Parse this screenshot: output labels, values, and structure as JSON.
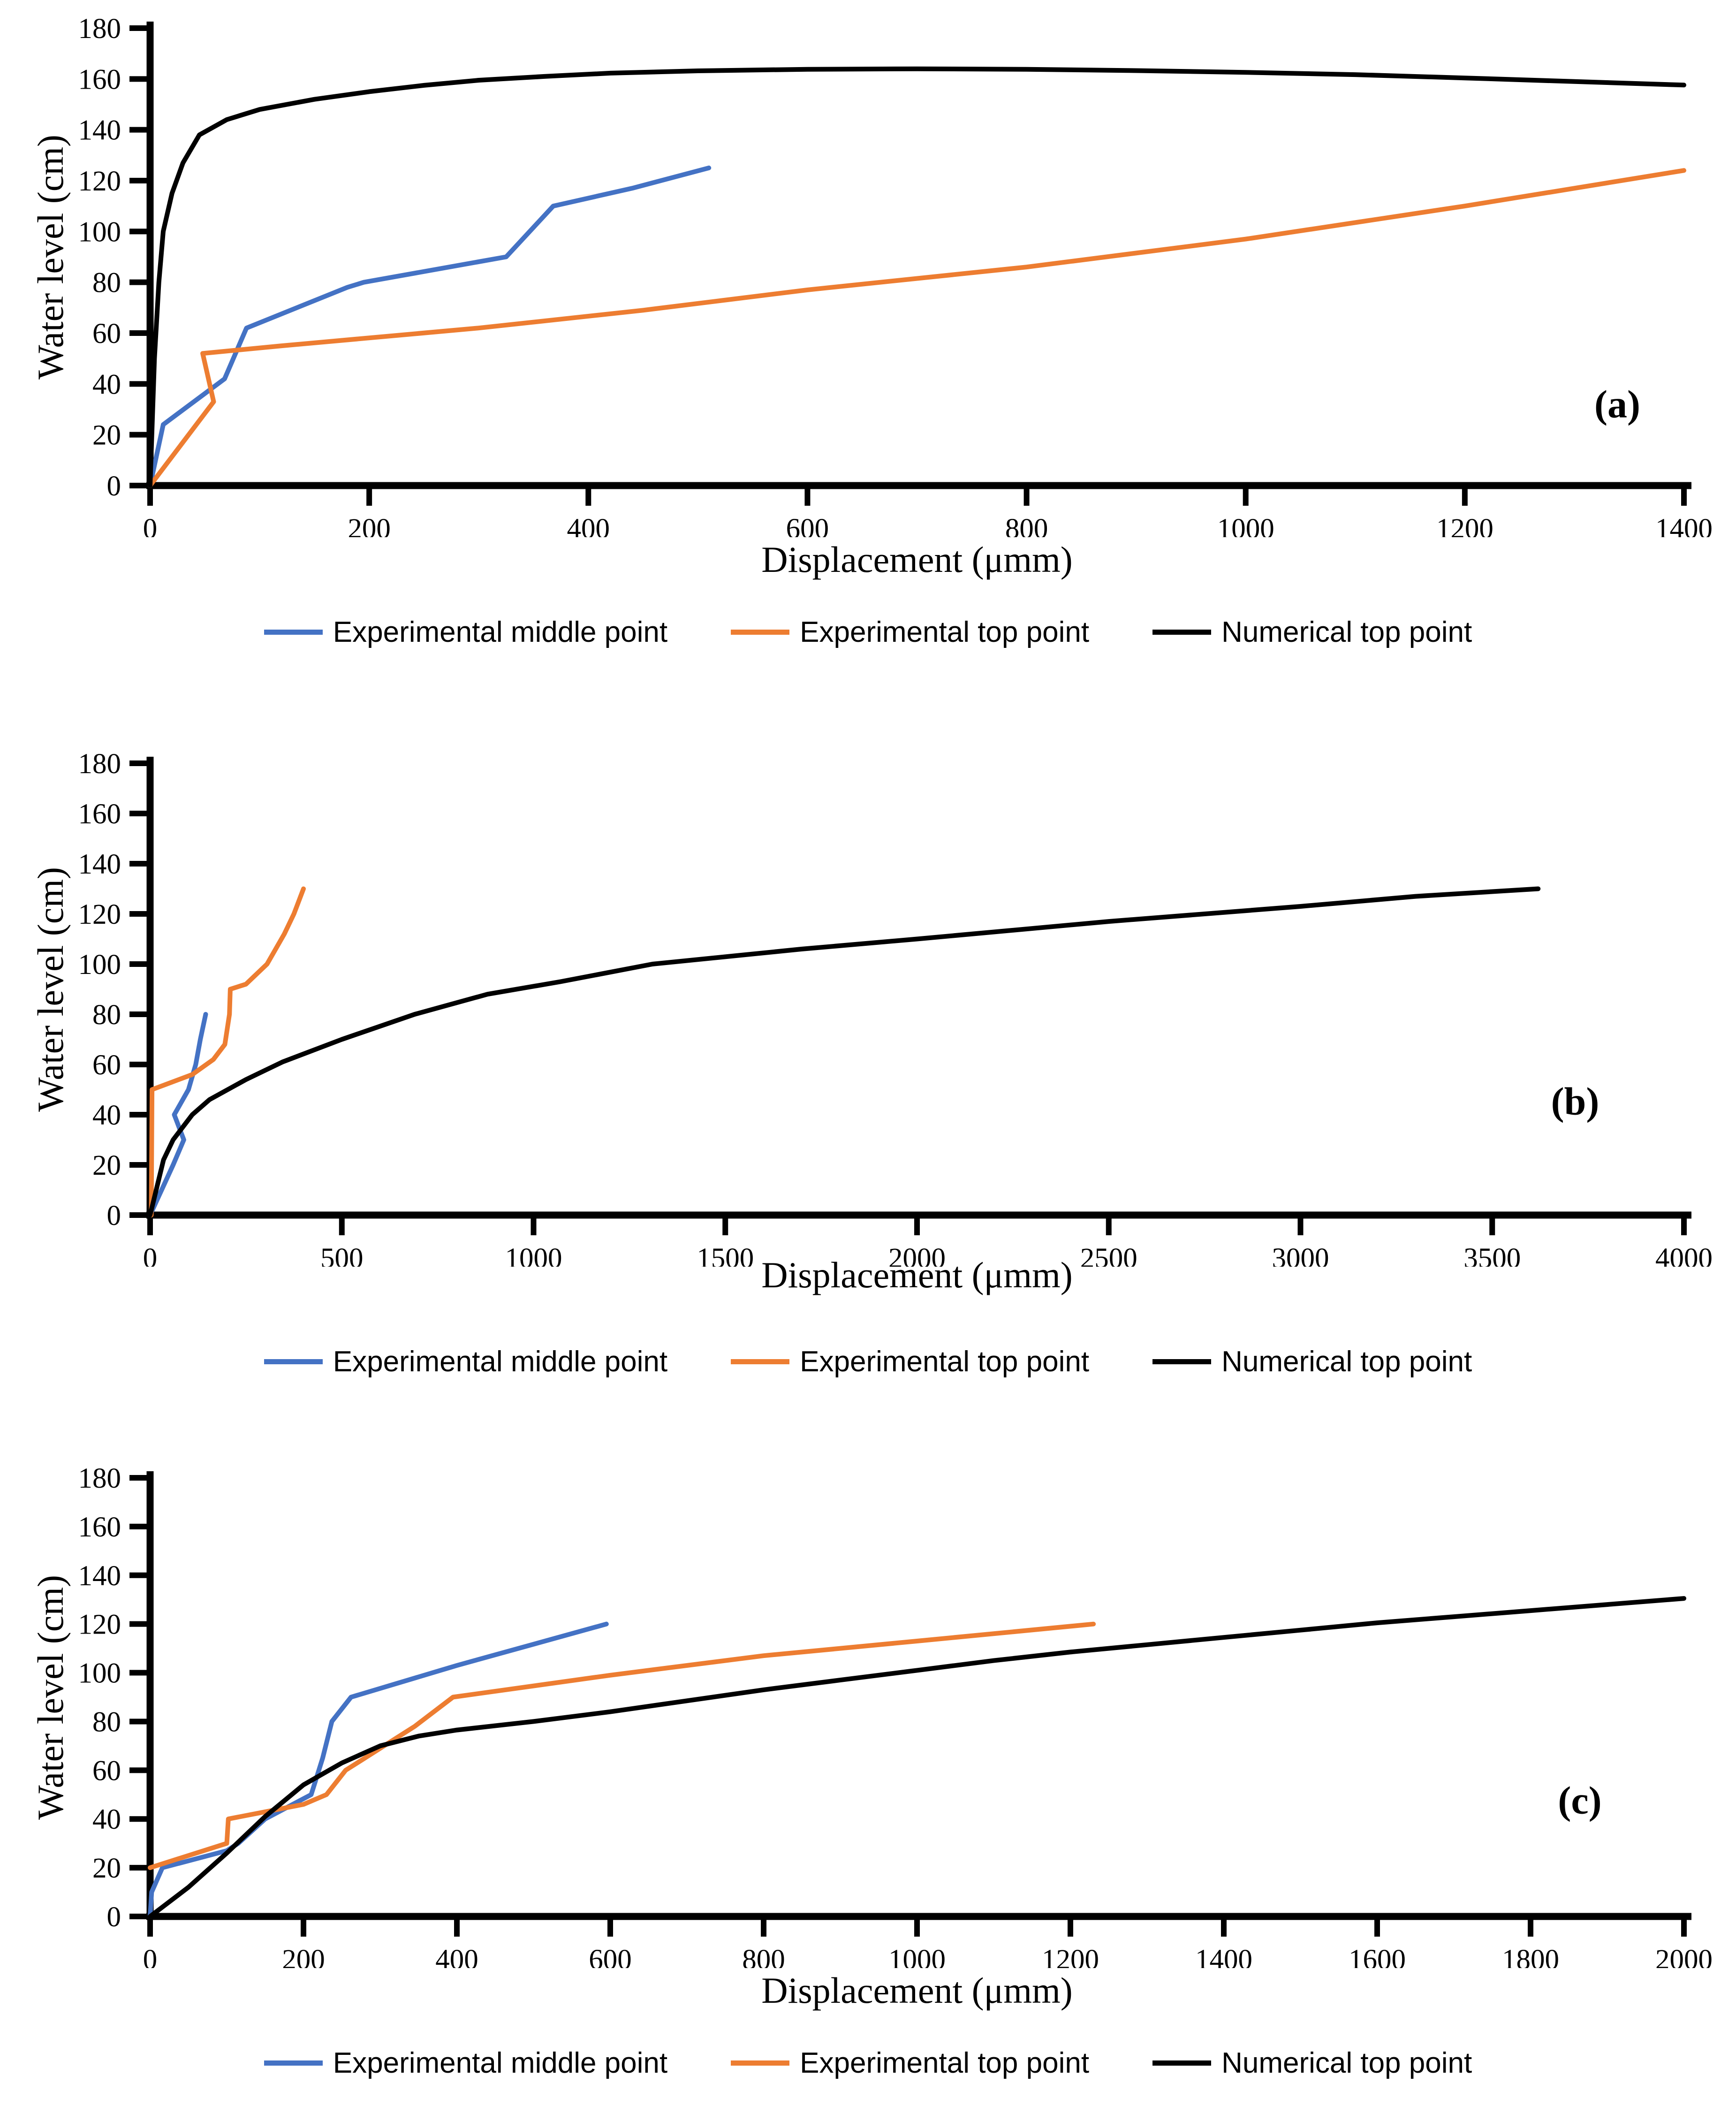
{
  "figure": {
    "background": "#ffffff",
    "series_colors": {
      "experimental_middle": "#4472C4",
      "experimental_top": "#ED7D31",
      "numerical_top": "#000000"
    }
  },
  "chart_data": [
    {
      "type": "line",
      "panel_label": "(a)",
      "title": "",
      "xlabel": "Displacement (μmm)",
      "ylabel": "Water level (cm)",
      "xlim": [
        0,
        1400
      ],
      "ylim": [
        0,
        180
      ],
      "x_ticks": [
        0,
        200,
        400,
        600,
        800,
        1000,
        1200,
        1400
      ],
      "y_ticks": [
        0,
        20,
        40,
        60,
        80,
        100,
        120,
        140,
        160,
        180
      ],
      "grid": false,
      "legend_position": "bottom",
      "series": [
        {
          "name": "Experimental middle point",
          "color": "#4472C4",
          "points": [
            [
              0,
              0
            ],
            [
              12,
              24
            ],
            [
              68,
              42
            ],
            [
              88,
              62
            ],
            [
              180,
              78
            ],
            [
              195,
              80
            ],
            [
              325,
              90
            ],
            [
              368,
              110
            ],
            [
              440,
              117
            ],
            [
              510,
              125
            ]
          ]
        },
        {
          "name": "Experimental top point",
          "color": "#ED7D31",
          "points": [
            [
              0,
              0
            ],
            [
              58,
              33
            ],
            [
              48,
              52
            ],
            [
              120,
              55
            ],
            [
              300,
              62
            ],
            [
              450,
              69
            ],
            [
              600,
              77
            ],
            [
              800,
              86
            ],
            [
              1000,
              97
            ],
            [
              1200,
              110
            ],
            [
              1300,
              117
            ],
            [
              1400,
              124
            ]
          ]
        },
        {
          "name": "Numerical top point",
          "color": "#000000",
          "points": [
            [
              0,
              0
            ],
            [
              4,
              50
            ],
            [
              8,
              80
            ],
            [
              12,
              100
            ],
            [
              20,
              115
            ],
            [
              30,
              127
            ],
            [
              45,
              138
            ],
            [
              70,
              144
            ],
            [
              100,
              148
            ],
            [
              150,
              152
            ],
            [
              200,
              155
            ],
            [
              250,
              157.5
            ],
            [
              300,
              159.5
            ],
            [
              360,
              161
            ],
            [
              420,
              162.3
            ],
            [
              500,
              163.2
            ],
            [
              600,
              163.8
            ],
            [
              700,
              164
            ],
            [
              800,
              163.8
            ],
            [
              900,
              163.3
            ],
            [
              1000,
              162.6
            ],
            [
              1100,
              161.7
            ],
            [
              1200,
              160.4
            ],
            [
              1300,
              159
            ],
            [
              1400,
              157.6
            ]
          ]
        }
      ]
    },
    {
      "type": "line",
      "panel_label": "(b)",
      "title": "",
      "xlabel": "Displacement (μmm)",
      "ylabel": "Water level (cm)",
      "xlim": [
        0,
        4000
      ],
      "ylim": [
        0,
        180
      ],
      "x_ticks": [
        0,
        500,
        1000,
        1500,
        2000,
        2500,
        3000,
        3500,
        4000
      ],
      "y_ticks": [
        0,
        20,
        40,
        60,
        80,
        100,
        120,
        140,
        160,
        180
      ],
      "grid": false,
      "legend_position": "bottom",
      "series": [
        {
          "name": "Experimental middle point",
          "color": "#4472C4",
          "points": [
            [
              0,
              0
            ],
            [
              60,
              20
            ],
            [
              88,
              30
            ],
            [
              63,
              40
            ],
            [
              100,
              50
            ],
            [
              119,
              60
            ],
            [
              131,
              70
            ],
            [
              145,
              80
            ]
          ]
        },
        {
          "name": "Experimental top point",
          "color": "#ED7D31",
          "points": [
            [
              3,
              0
            ],
            [
              5,
              50
            ],
            [
              40,
              52
            ],
            [
              110,
              56
            ],
            [
              165,
              62
            ],
            [
              195,
              68
            ],
            [
              207,
              80
            ],
            [
              209,
              90
            ],
            [
              250,
              92
            ],
            [
              305,
              100
            ],
            [
              350,
              112
            ],
            [
              375,
              120
            ],
            [
              400,
              130
            ]
          ]
        },
        {
          "name": "Numerical top point",
          "color": "#000000",
          "points": [
            [
              0,
              0
            ],
            [
              35,
              22
            ],
            [
              60,
              30
            ],
            [
              110,
              40
            ],
            [
              155,
              46
            ],
            [
              250,
              54
            ],
            [
              345,
              61
            ],
            [
              500,
              70
            ],
            [
              690,
              80
            ],
            [
              880,
              88
            ],
            [
              1070,
              93
            ],
            [
              1310,
              100
            ],
            [
              1700,
              106
            ],
            [
              2000,
              110
            ],
            [
              2500,
              117
            ],
            [
              3000,
              123
            ],
            [
              3300,
              127
            ],
            [
              3620,
              130
            ]
          ]
        }
      ]
    },
    {
      "type": "line",
      "panel_label": "(c)",
      "title": "",
      "xlabel": "Displacement (μmm)",
      "ylabel": "Water level (cm)",
      "xlim": [
        0,
        2000
      ],
      "ylim": [
        0,
        180
      ],
      "x_ticks": [
        0,
        200,
        400,
        600,
        800,
        1000,
        1200,
        1400,
        1600,
        1800,
        2000
      ],
      "y_ticks": [
        0,
        20,
        40,
        60,
        80,
        100,
        120,
        140,
        160,
        180
      ],
      "grid": false,
      "legend_position": "bottom",
      "series": [
        {
          "name": "Experimental middle point",
          "color": "#4472C4",
          "points": [
            [
              0,
              0
            ],
            [
              2,
              10
            ],
            [
              16,
              20
            ],
            [
              100,
              27
            ],
            [
              115,
              30
            ],
            [
              150,
              40
            ],
            [
              210,
              50
            ],
            [
              225,
              65
            ],
            [
              237,
              80
            ],
            [
              262,
              90
            ],
            [
              400,
              103
            ],
            [
              595,
              120
            ]
          ]
        },
        {
          "name": "Experimental top point",
          "color": "#ED7D31",
          "points": [
            [
              0,
              20
            ],
            [
              100,
              30
            ],
            [
              102,
              40
            ],
            [
              200,
              46
            ],
            [
              230,
              50
            ],
            [
              255,
              60
            ],
            [
              275,
              64
            ],
            [
              345,
              78
            ],
            [
              395,
              90
            ],
            [
              600,
              99
            ],
            [
              800,
              107
            ],
            [
              1000,
              113
            ],
            [
              1230,
              120
            ]
          ]
        },
        {
          "name": "Numerical top point",
          "color": "#000000",
          "points": [
            [
              0,
              0
            ],
            [
              50,
              12
            ],
            [
              100,
              26
            ],
            [
              150,
              41
            ],
            [
              200,
              54
            ],
            [
              250,
              63
            ],
            [
              300,
              70
            ],
            [
              350,
              74
            ],
            [
              400,
              76.5
            ],
            [
              500,
              80
            ],
            [
              600,
              84
            ],
            [
              700,
              88.5
            ],
            [
              800,
              93
            ],
            [
              900,
              97
            ],
            [
              1000,
              101
            ],
            [
              1100,
              105
            ],
            [
              1200,
              108.5
            ],
            [
              1300,
              111.5
            ],
            [
              1400,
              114.5
            ],
            [
              1500,
              117.5
            ],
            [
              1600,
              120.5
            ],
            [
              1700,
              123
            ],
            [
              1800,
              125.5
            ],
            [
              1900,
              128
            ],
            [
              2000,
              130.5
            ]
          ]
        }
      ]
    }
  ]
}
